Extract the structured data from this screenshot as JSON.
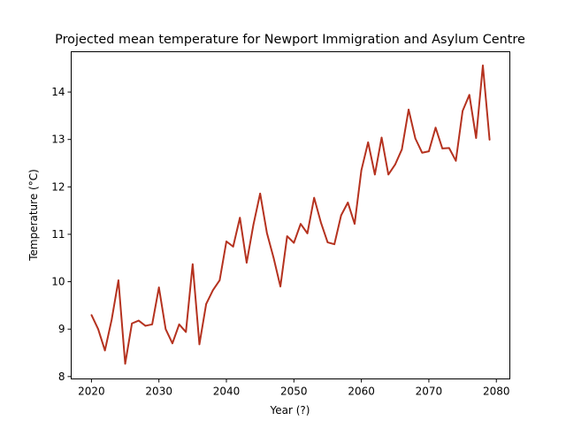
{
  "chart_data": {
    "type": "line",
    "title": "Projected mean temperature for Newport Immigration and Asylum Centre",
    "xlabel": "Year (?)",
    "ylabel": "Temperature (°C)",
    "xlim": [
      2017,
      2082
    ],
    "ylim": [
      7.95,
      14.85
    ],
    "x_ticks": [
      2020,
      2030,
      2040,
      2050,
      2060,
      2070,
      2080
    ],
    "y_ticks": [
      8,
      9,
      10,
      11,
      12,
      13,
      14
    ],
    "grid": false,
    "line_color": "#b5321f",
    "series": [
      {
        "x": [
          2020,
          2021,
          2022,
          2023,
          2024,
          2025,
          2026,
          2027,
          2028,
          2029,
          2030,
          2031,
          2032,
          2033,
          2034,
          2035,
          2036,
          2037,
          2038,
          2039,
          2040,
          2041,
          2042,
          2043,
          2044,
          2045,
          2046,
          2047,
          2048,
          2049,
          2050,
          2051,
          2052,
          2053,
          2054,
          2055,
          2056,
          2057,
          2058,
          2059,
          2060,
          2061,
          2062,
          2063,
          2064,
          2065,
          2066,
          2067,
          2068,
          2069,
          2070,
          2071,
          2072,
          2073,
          2074,
          2075,
          2076,
          2077,
          2078,
          2079
        ],
        "values": [
          9.3,
          9.0,
          8.55,
          9.2,
          10.03,
          8.27,
          9.12,
          9.18,
          9.07,
          9.1,
          9.88,
          9.0,
          8.7,
          9.1,
          8.94,
          10.37,
          8.68,
          9.53,
          9.82,
          10.03,
          10.85,
          10.74,
          11.35,
          10.4,
          11.2,
          11.86,
          11.03,
          10.5,
          9.9,
          10.96,
          10.82,
          11.22,
          11.02,
          11.77,
          11.25,
          10.83,
          10.79,
          11.4,
          11.67,
          11.22,
          12.35,
          12.94,
          12.26,
          13.04,
          12.26,
          12.47,
          12.79,
          13.63,
          13.02,
          12.72,
          12.75,
          13.25,
          12.81,
          12.82,
          12.55,
          13.6,
          13.94,
          13.03,
          14.56,
          12.99
        ]
      }
    ]
  }
}
